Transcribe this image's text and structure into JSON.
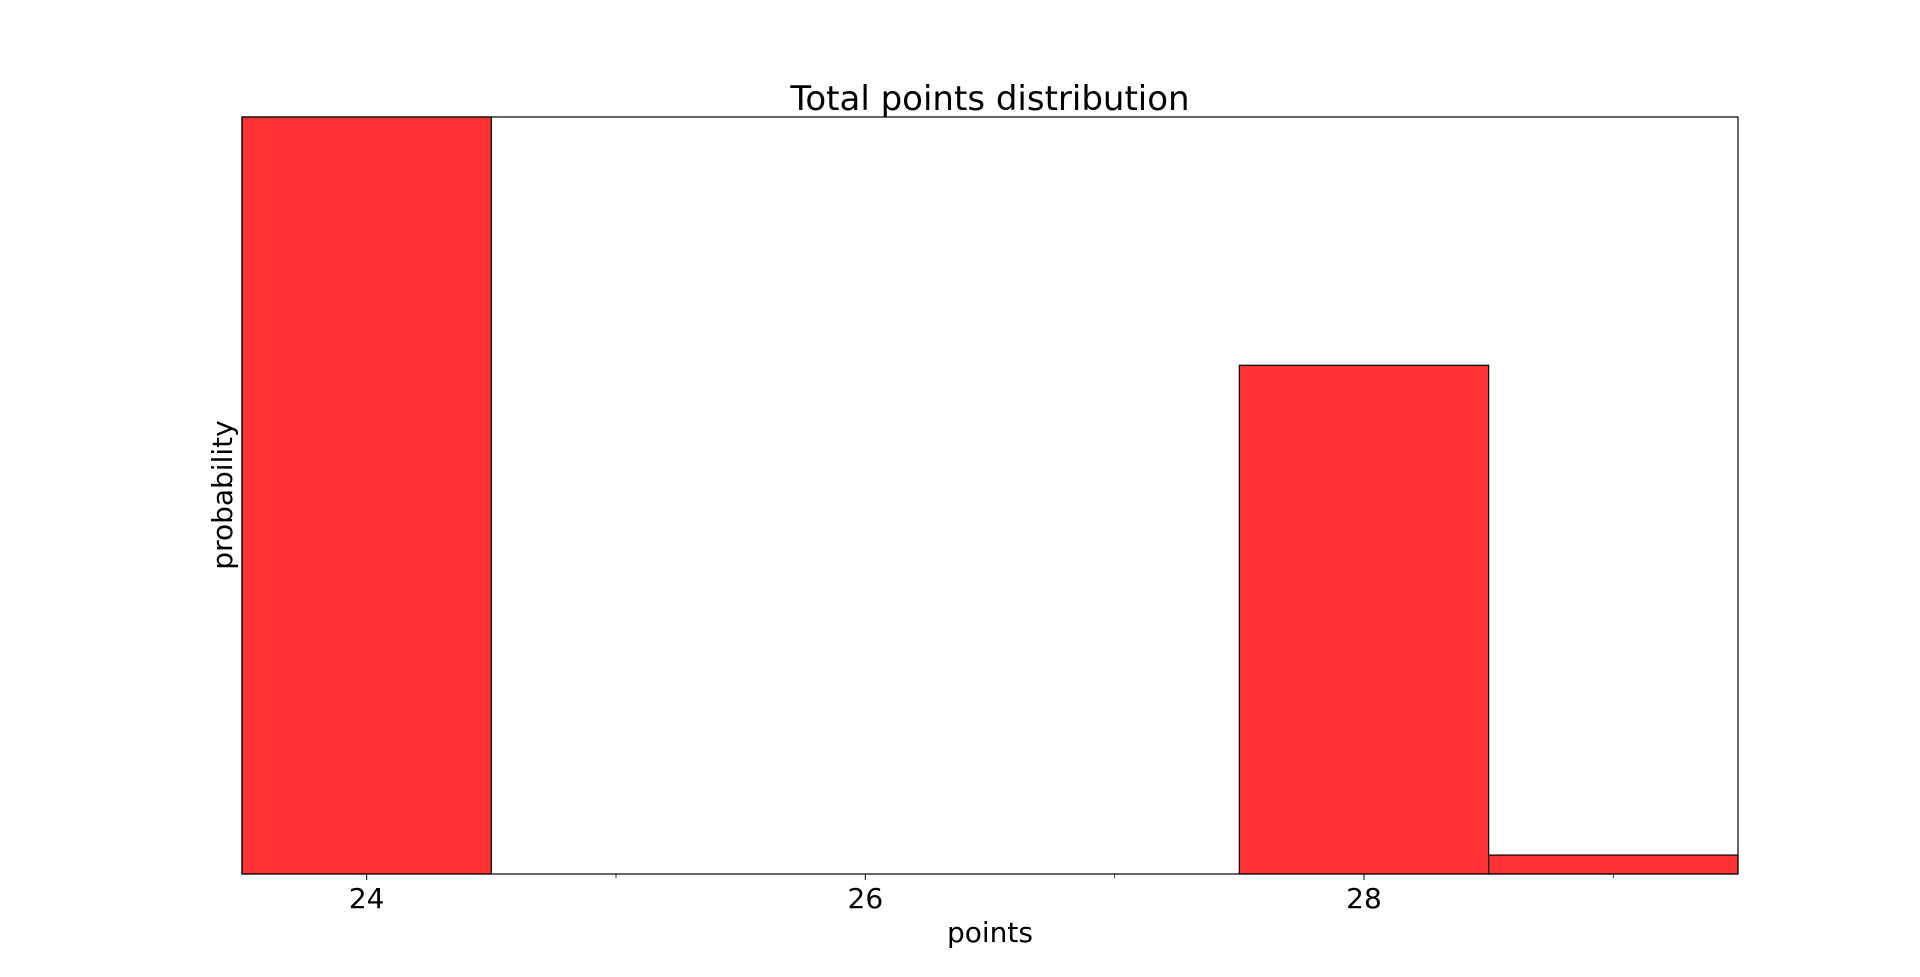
{
  "chart_data": {
    "type": "bar",
    "title": "Total points distribution",
    "xlabel": "points",
    "ylabel": "probability",
    "bar_color": "#ff3333",
    "edge_color": "#000000",
    "bins": [
      {
        "x_start": 23.5,
        "x_end": 24.5,
        "value": 1.0
      },
      {
        "x_start": 24.5,
        "x_end": 25.5,
        "value": 0.0
      },
      {
        "x_start": 25.5,
        "x_end": 26.5,
        "value": 0.0
      },
      {
        "x_start": 26.5,
        "x_end": 27.5,
        "value": 0.0
      },
      {
        "x_start": 27.5,
        "x_end": 28.5,
        "value": 0.672
      },
      {
        "x_start": 28.5,
        "x_end": 29.5,
        "value": 0.025
      }
    ],
    "xlim": [
      23.5,
      29.5
    ],
    "ylim": [
      0,
      1.0
    ],
    "x_major_ticks": [
      24,
      26,
      28
    ],
    "x_major_tick_labels": [
      "24",
      "26",
      "28"
    ],
    "x_minor_ticks": [
      25,
      27,
      29
    ],
    "y_tick_labels_shown": false,
    "grid": false,
    "legend": "none"
  }
}
